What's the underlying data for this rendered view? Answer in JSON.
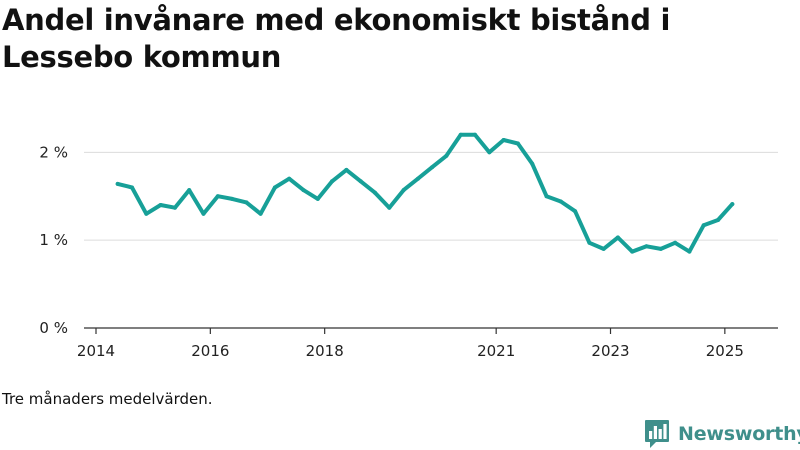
{
  "header": {
    "title": "Andel invånare med ekonomiskt bistånd i Lessebo kommun"
  },
  "footer": {
    "note": "Tre månaders medelvärden.",
    "brand": "Newsworthy",
    "brand_icon": "bar-chart-logo-icon"
  },
  "colors": {
    "line": "#17a098",
    "brand": "#3f8f8b"
  },
  "chart_data": {
    "type": "line",
    "title": "Andel invånare med ekonomiskt bistånd i Lessebo kommun",
    "xlabel": "",
    "ylabel": "",
    "x_tick_labels": [
      "2014",
      "2016",
      "2018",
      "2021",
      "2023",
      "2025"
    ],
    "x_tick_values": [
      2014.0,
      2016.0,
      2018.0,
      2021.0,
      2023.0,
      2025.0
    ],
    "y_tick_labels": [
      "0 %",
      "1 %",
      "2 %"
    ],
    "y_tick_values": [
      0,
      1,
      2
    ],
    "xlim": [
      2014.0,
      2025.65
    ],
    "ylim": [
      0,
      2.55
    ],
    "grid": "horizontal",
    "legend": "none",
    "unit": "%",
    "series": [
      {
        "x": [
          2014.38,
          2014.63,
          2014.88,
          2015.13,
          2015.38,
          2015.63,
          2015.88,
          2016.13,
          2016.38,
          2016.63,
          2016.88,
          2017.13,
          2017.38,
          2017.63,
          2017.88,
          2018.13,
          2018.38,
          2018.63,
          2018.88,
          2019.13,
          2019.38,
          2019.63,
          2019.88,
          2020.13,
          2020.38,
          2020.63,
          2020.88,
          2021.13,
          2021.38,
          2021.63,
          2021.88,
          2022.13,
          2022.38,
          2022.63,
          2022.88,
          2023.13,
          2023.38,
          2023.63,
          2023.88,
          2024.13,
          2024.38,
          2024.63,
          2024.88,
          2025.13
        ],
        "values": [
          1.64,
          1.6,
          1.3,
          1.4,
          1.37,
          1.57,
          1.3,
          1.5,
          1.47,
          1.43,
          1.3,
          1.6,
          1.7,
          1.57,
          1.47,
          1.67,
          1.8,
          1.67,
          1.54,
          1.37,
          1.57,
          1.7,
          1.83,
          1.96,
          2.2,
          2.2,
          2.0,
          2.14,
          2.1,
          1.87,
          1.5,
          1.44,
          1.33,
          0.97,
          0.9,
          1.03,
          0.87,
          0.93,
          0.9,
          0.97,
          0.87,
          1.17,
          1.23,
          1.41
        ]
      }
    ]
  }
}
